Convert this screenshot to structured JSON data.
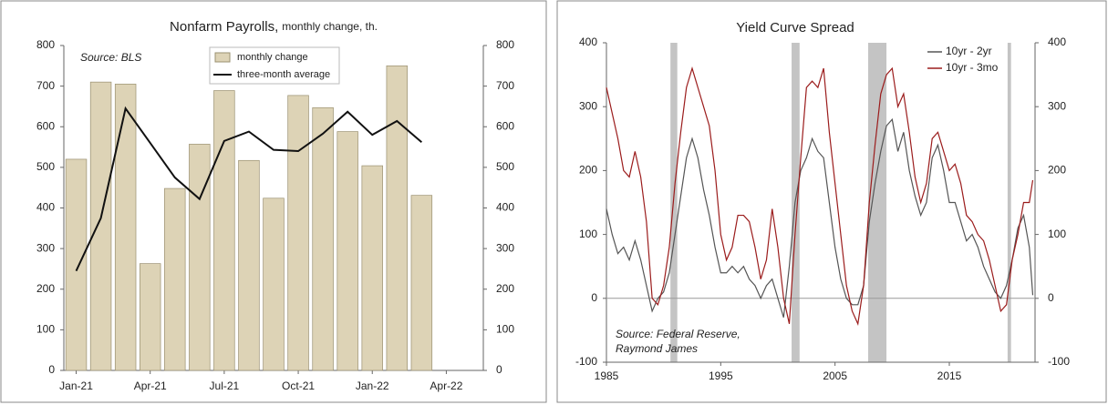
{
  "chart_data": [
    {
      "type": "bar",
      "title": "Nonfarm Payrolls,",
      "subtitle": "monthly change, th.",
      "annotation": "Source: BLS",
      "categories": [
        "Jan-21",
        null,
        null,
        "Apr-21",
        null,
        null,
        "Jul-21",
        null,
        null,
        "Oct-21",
        null,
        null,
        "Jan-22",
        null,
        null,
        "Apr-22",
        null
      ],
      "series": [
        {
          "name": "monthly change",
          "type": "bar",
          "color": "#ddd3b6",
          "values": [
            520,
            710,
            705,
            263,
            448,
            557,
            689,
            517,
            424,
            677,
            647,
            588,
            504,
            750,
            431,
            null,
            null
          ]
        },
        {
          "name": "three-month average",
          "type": "line",
          "color": "#111111",
          "values": [
            245,
            375,
            645,
            560,
            475,
            422,
            565,
            588,
            543,
            540,
            583,
            637,
            580,
            614,
            562,
            null,
            null
          ]
        }
      ],
      "ylim": [
        0,
        800
      ],
      "yticks": [
        0,
        100,
        200,
        300,
        400,
        500,
        600,
        700,
        800
      ],
      "y2lim": [
        0,
        800
      ],
      "y2ticks": [
        0,
        100,
        200,
        300,
        400,
        500,
        600,
        700,
        800
      ],
      "legend": "top-center"
    },
    {
      "type": "line",
      "title": "Yield Curve Spread",
      "annotation": [
        "Source: Federal Reserve,",
        "Raymond James"
      ],
      "x": [
        1985,
        1985.5,
        1986,
        1986.5,
        1987,
        1987.5,
        1988,
        1988.5,
        1989,
        1989.5,
        1990,
        1990.5,
        1991,
        1991.5,
        1992,
        1992.5,
        1993,
        1993.5,
        1994,
        1994.5,
        1995,
        1995.5,
        1996,
        1996.5,
        1997,
        1997.5,
        1998,
        1998.5,
        1999,
        1999.5,
        2000,
        2000.5,
        2001,
        2001.5,
        2002,
        2002.5,
        2003,
        2003.5,
        2004,
        2004.5,
        2005,
        2005.5,
        2006,
        2006.5,
        2007,
        2007.5,
        2008,
        2008.5,
        2009,
        2009.5,
        2010,
        2010.5,
        2011,
        2011.5,
        2012,
        2012.5,
        2013,
        2013.5,
        2014,
        2014.5,
        2015,
        2015.5,
        2016,
        2016.5,
        2017,
        2017.5,
        2018,
        2018.5,
        2019,
        2019.5,
        2020,
        2020.5,
        2021,
        2021.5,
        2022,
        2022.3
      ],
      "series": [
        {
          "name": "10yr - 2yr",
          "color": "#555555",
          "values": [
            140,
            100,
            70,
            80,
            60,
            90,
            60,
            20,
            -20,
            0,
            10,
            40,
            100,
            160,
            220,
            250,
            220,
            170,
            130,
            80,
            40,
            40,
            50,
            40,
            50,
            30,
            20,
            0,
            20,
            30,
            0,
            -30,
            50,
            150,
            200,
            220,
            250,
            230,
            220,
            150,
            80,
            30,
            0,
            -10,
            -10,
            20,
            120,
            180,
            230,
            270,
            280,
            230,
            260,
            200,
            160,
            130,
            150,
            220,
            240,
            200,
            150,
            150,
            120,
            90,
            100,
            80,
            50,
            30,
            10,
            0,
            20,
            60,
            110,
            130,
            80,
            5
          ]
        },
        {
          "name": "10yr - 3mo",
          "color": "#9b1c1c",
          "values": [
            330,
            290,
            250,
            200,
            190,
            230,
            190,
            120,
            0,
            -10,
            20,
            80,
            180,
            260,
            330,
            360,
            330,
            300,
            270,
            200,
            100,
            60,
            80,
            130,
            130,
            120,
            80,
            30,
            60,
            140,
            80,
            0,
            -40,
            100,
            220,
            330,
            340,
            330,
            360,
            260,
            180,
            100,
            20,
            -20,
            -40,
            20,
            150,
            240,
            320,
            350,
            360,
            300,
            320,
            260,
            190,
            150,
            180,
            250,
            260,
            230,
            200,
            210,
            180,
            130,
            120,
            100,
            90,
            60,
            20,
            -20,
            -10,
            60,
            100,
            150,
            150,
            185
          ]
        }
      ],
      "recessions": [
        [
          1990.6,
          1991.2
        ],
        [
          2001.2,
          2001.9
        ],
        [
          2007.9,
          2009.5
        ],
        [
          2020.1,
          2020.4
        ]
      ],
      "xlim": [
        1985,
        2022.5
      ],
      "xticks": [
        1985,
        1995,
        2005,
        2015
      ],
      "ylim": [
        -100,
        400
      ],
      "yticks": [
        -100,
        0,
        100,
        200,
        300,
        400
      ],
      "y2lim": [
        -100,
        400
      ],
      "y2ticks": [
        -100,
        0,
        100,
        200,
        300,
        400
      ],
      "legend": "top-right"
    }
  ]
}
